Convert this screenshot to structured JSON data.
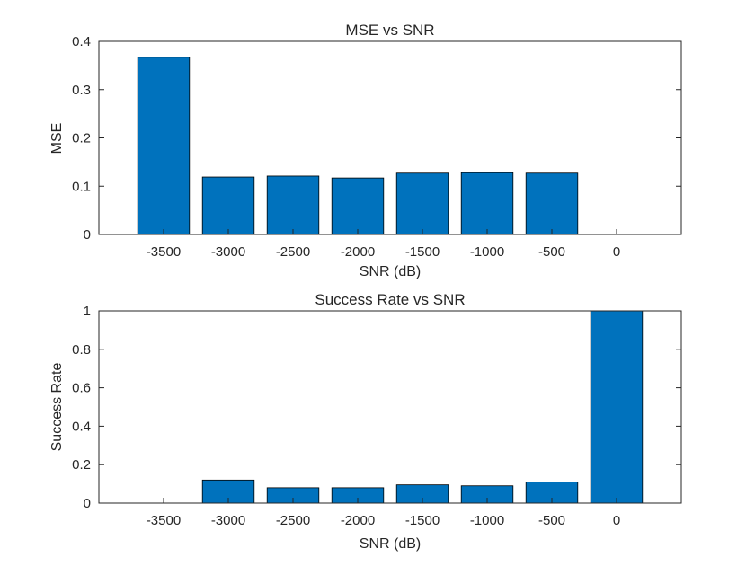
{
  "chart_data": [
    {
      "type": "bar",
      "title": "MSE vs SNR",
      "xlabel": "SNR (dB)",
      "ylabel": "MSE",
      "categories": [
        "-3500",
        "-3000",
        "-2500",
        "-2000",
        "-1500",
        "-1000",
        "-500",
        "0"
      ],
      "values": [
        0.367,
        0.119,
        0.121,
        0.117,
        0.127,
        0.128,
        0.127,
        0
      ],
      "ylim": [
        0,
        0.4
      ],
      "yticks": [
        "0",
        "0.1",
        "0.2",
        "0.3",
        "0.4"
      ],
      "ytick_values": [
        0,
        0.1,
        0.2,
        0.3,
        0.4
      ],
      "bar_color": "#0072BD",
      "grid": false,
      "legend": "none"
    },
    {
      "type": "bar",
      "title": "Success Rate vs SNR",
      "xlabel": "SNR (dB)",
      "ylabel": "Success Rate",
      "categories": [
        "-3500",
        "-3000",
        "-2500",
        "-2000",
        "-1500",
        "-1000",
        "-500",
        "0"
      ],
      "values": [
        0,
        0.12,
        0.08,
        0.08,
        0.095,
        0.09,
        0.11,
        1.0
      ],
      "ylim": [
        0,
        1
      ],
      "yticks": [
        "0",
        "0.2",
        "0.4",
        "0.6",
        "0.8",
        "1"
      ],
      "ytick_values": [
        0,
        0.2,
        0.4,
        0.6,
        0.8,
        1
      ],
      "bar_color": "#0072BD",
      "grid": false,
      "legend": "none"
    }
  ]
}
